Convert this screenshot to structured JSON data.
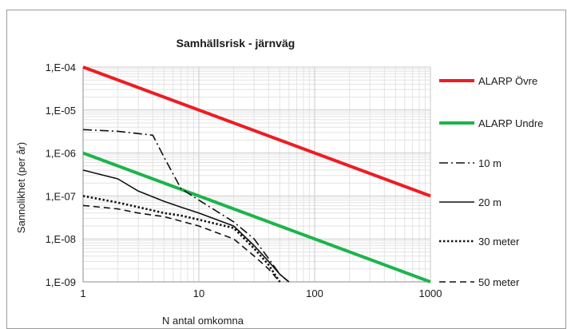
{
  "chart_data": {
    "type": "line",
    "title": "Samhällsrisk - järnväg",
    "xlabel": "N antal omkomna",
    "ylabel": "Sannolikhet (per år)",
    "xscale": "log",
    "yscale": "log",
    "xlim": [
      1,
      1000
    ],
    "ylim": [
      1e-09,
      0.0001
    ],
    "x_ticks": [
      {
        "value": 1,
        "label": "1"
      },
      {
        "value": 10,
        "label": "10"
      },
      {
        "value": 100,
        "label": "100"
      },
      {
        "value": 1000,
        "label": "1000"
      }
    ],
    "y_ticks": [
      {
        "value": 0.0001,
        "label": "1,E-04"
      },
      {
        "value": 1e-05,
        "label": "1,E-05"
      },
      {
        "value": 1e-06,
        "label": "1,E-06"
      },
      {
        "value": 1e-07,
        "label": "1,E-07"
      },
      {
        "value": 1e-08,
        "label": "1,E-08"
      },
      {
        "value": 1e-09,
        "label": "1,E-09"
      }
    ],
    "grid": true,
    "legend_position": "right",
    "series": [
      {
        "name": "ALARP Övre",
        "color": "#ee1c24",
        "style": "solid",
        "width": 4,
        "x": [
          1,
          1000
        ],
        "y": [
          0.0001,
          1e-07
        ]
      },
      {
        "name": "ALARP Undre",
        "color": "#1db44b",
        "style": "solid",
        "width": 4,
        "x": [
          1,
          1000
        ],
        "y": [
          1e-06,
          1e-09
        ]
      },
      {
        "name": "10 m",
        "color": "#111111",
        "style": "dashdot",
        "width": 1.6,
        "x": [
          1,
          2,
          4,
          5,
          7,
          10,
          20,
          30,
          40,
          50,
          60
        ],
        "y": [
          3.5e-06,
          3.2e-06,
          2.6e-06,
          8e-07,
          1.5e-07,
          8e-08,
          2.5e-08,
          1e-08,
          3.5e-09,
          1.5e-09,
          1e-09
        ]
      },
      {
        "name": "20 m",
        "color": "#111111",
        "style": "solid",
        "width": 1.6,
        "x": [
          1,
          2,
          3,
          5,
          7,
          10,
          20,
          30,
          40,
          50,
          60
        ],
        "y": [
          4e-07,
          2.5e-07,
          1.3e-07,
          7.5e-08,
          5.5e-08,
          4e-08,
          2e-08,
          7e-09,
          3e-09,
          1.5e-09,
          1e-09
        ]
      },
      {
        "name": "30 meter",
        "color": "#111111",
        "style": "dotted",
        "width": 2.6,
        "x": [
          1,
          2,
          3,
          5,
          7,
          10,
          20,
          30,
          40,
          50
        ],
        "y": [
          1e-07,
          7e-08,
          5.5e-08,
          4e-08,
          3.5e-08,
          2.8e-08,
          1.8e-08,
          6e-09,
          2.5e-09,
          1e-09
        ]
      },
      {
        "name": "50 meter",
        "color": "#111111",
        "style": "dashed",
        "width": 1.6,
        "x": [
          1,
          2,
          3,
          5,
          7,
          10,
          20,
          30,
          40,
          50
        ],
        "y": [
          6e-08,
          5e-08,
          4e-08,
          3.3e-08,
          2.6e-08,
          2e-08,
          1e-08,
          4e-09,
          2e-09,
          1e-09
        ]
      }
    ]
  }
}
